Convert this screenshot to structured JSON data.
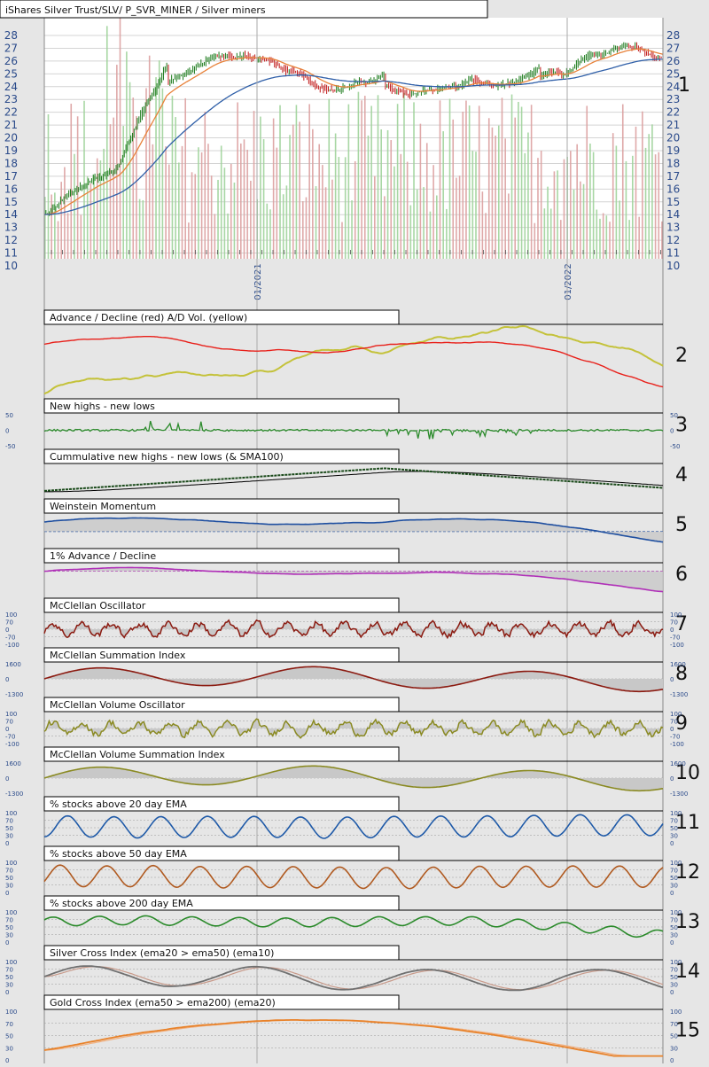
{
  "chart_data": {
    "type": "line",
    "title": "iShares Silver Trust/SLV/ P_SVR_MINER / Silver miners",
    "x_ticks": [
      "01/2021",
      "01/2022"
    ],
    "price_axis": {
      "ylim": [
        10,
        28
      ],
      "ticks": [
        10,
        11,
        12,
        13,
        14,
        15,
        16,
        17,
        18,
        19,
        20,
        21,
        22,
        23,
        24,
        25,
        26,
        27,
        28
      ]
    },
    "price_series": {
      "candles": "SLV daily OHLC",
      "ema_short_color": "#e8823a",
      "ema_long_color": "#2f5fa8",
      "volume_up_color": "#9fd39a",
      "volume_down_color": "#dba0a0"
    },
    "panels": [
      {
        "num": "1",
        "title": "iShares Silver Trust/SLV/ P_SVR_MINER / Silver miners"
      },
      {
        "num": "2",
        "title": "Advance / Decline (red) A/D Vol. (yellow)",
        "series": [
          {
            "color": "#e8201a"
          },
          {
            "color": "#c4c23a"
          }
        ]
      },
      {
        "num": "3",
        "title": "New highs - new lows",
        "ticks": [
          "50",
          "0",
          "-50"
        ],
        "series": [
          {
            "color": "#2a8a2a"
          }
        ]
      },
      {
        "num": "4",
        "title": "Cummulative new highs - new lows (& SMA100)",
        "series": [
          {
            "color": "#1a4a1a"
          },
          {
            "color": "#000000"
          }
        ]
      },
      {
        "num": "5",
        "title": "Weinstein Momentum",
        "series": [
          {
            "color": "#1f4fa0"
          }
        ]
      },
      {
        "num": "6",
        "title": "1% Advance / Decline",
        "series": [
          {
            "color": "#b030b8"
          }
        ]
      },
      {
        "num": "7",
        "title": "McClellan Oscillator",
        "ticks": [
          "100",
          "70",
          "0",
          "-70",
          "-100"
        ],
        "series": [
          {
            "color": "#8b1a10"
          }
        ]
      },
      {
        "num": "8",
        "title": "McClellan Summation Index",
        "ticks": [
          "1600",
          "0",
          "-1300"
        ],
        "series": [
          {
            "color": "#8b1a10"
          }
        ]
      },
      {
        "num": "9",
        "title": "McClellan Volume Oscillator",
        "ticks": [
          "100",
          "70",
          "0",
          "-70",
          "-100"
        ],
        "series": [
          {
            "color": "#8a8a22"
          }
        ]
      },
      {
        "num": "10",
        "title": "McClellan Volume Summation Index",
        "ticks": [
          "1600",
          "0",
          "-1300"
        ],
        "series": [
          {
            "color": "#8a8a22"
          }
        ]
      },
      {
        "num": "11",
        "title": "% stocks above 20 day EMA",
        "ticks": [
          "100",
          "70",
          "50",
          "30",
          "0"
        ],
        "series": [
          {
            "color": "#1f5aa8"
          }
        ]
      },
      {
        "num": "12",
        "title": "% stocks above 50 day EMA",
        "ticks": [
          "100",
          "70",
          "50",
          "30",
          "0"
        ],
        "series": [
          {
            "color": "#b05a20"
          }
        ]
      },
      {
        "num": "13",
        "title": "% stocks above 200 day EMA",
        "ticks": [
          "100",
          "70",
          "50",
          "30",
          "0"
        ],
        "series": [
          {
            "color": "#2a8a2a"
          }
        ]
      },
      {
        "num": "14",
        "title": "Silver Cross Index (ema20 > ema50) (ema10)",
        "ticks": [
          "100",
          "70",
          "50",
          "30",
          "0"
        ],
        "series": [
          {
            "color": "#707070"
          },
          {
            "color": "#c89a8a"
          }
        ]
      },
      {
        "num": "15",
        "title": "Gold Cross Index (ema50 > ema200) (ema20)",
        "ticks": [
          "100",
          "70",
          "50",
          "30",
          "0"
        ],
        "series": [
          {
            "color": "#e8822a"
          },
          {
            "color": "#f0b080"
          }
        ]
      }
    ]
  }
}
